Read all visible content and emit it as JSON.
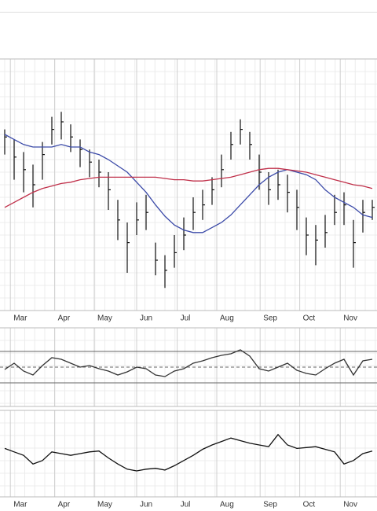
{
  "chart_data": [
    {
      "type": "ohlc",
      "x": [
        0.5,
        1.5,
        2.5,
        3.5,
        4.5,
        5.5,
        6.5,
        7.5,
        8.5,
        9.5,
        10.5,
        11.5,
        12.5,
        13.5,
        14.5,
        15.5,
        16.5,
        17.5,
        18.5,
        19.5,
        20.5,
        21.5,
        22.5,
        23.5,
        24.5,
        25.5,
        26.5,
        27.5,
        28.5,
        29.5,
        30.5,
        31.5,
        32.5,
        33.5,
        34.5,
        35.5,
        36.5,
        37.5,
        38.5,
        39.5
      ],
      "high": [
        72,
        68,
        63,
        58,
        67,
        77,
        79,
        74,
        68,
        64,
        60,
        55,
        44,
        35,
        43,
        46,
        27,
        22,
        30,
        37,
        45,
        48,
        53,
        62,
        71,
        76,
        71,
        62,
        55,
        56,
        54,
        48,
        37,
        34,
        38,
        46,
        47,
        36,
        44,
        44
      ],
      "low": [
        62,
        52,
        47,
        41,
        52,
        66,
        68,
        63,
        57,
        53,
        49,
        40,
        28,
        15,
        30,
        32,
        14,
        9,
        17,
        24,
        32,
        36,
        42,
        49,
        60,
        66,
        60,
        48,
        42,
        44,
        39,
        32,
        22,
        18,
        25,
        34,
        34,
        17,
        31,
        36
      ],
      "close": [
        69,
        61,
        56,
        50,
        62,
        72,
        75,
        69,
        64,
        59,
        55,
        48,
        36,
        27,
        36,
        39,
        20,
        16,
        23,
        30,
        39,
        42,
        48,
        56,
        66,
        72,
        66,
        55,
        48,
        50,
        47,
        41,
        30,
        28,
        31,
        39,
        42,
        27,
        39,
        41
      ],
      "bar_color": "#111111",
      "series": [
        {
          "color": "#3b4aa8",
          "values": [
            70,
            68,
            66,
            65,
            65,
            65,
            66,
            65,
            65,
            63,
            62,
            60,
            57.5,
            55,
            51,
            47,
            42,
            37.5,
            34,
            32,
            31,
            31,
            33,
            35,
            38,
            42,
            46,
            50,
            53,
            55,
            56,
            55,
            54,
            52,
            48,
            45,
            43,
            41,
            38,
            37
          ]
        },
        {
          "color": "#c0304a",
          "values": [
            41,
            43,
            45,
            47,
            48.5,
            49.5,
            50.5,
            51,
            52,
            52.5,
            53,
            53,
            53,
            53,
            53,
            53,
            53,
            52.5,
            52,
            52,
            51.5,
            51.5,
            52,
            52.5,
            53,
            54,
            55,
            56,
            56.5,
            56.5,
            56,
            55.5,
            55,
            54,
            53,
            52,
            51,
            50,
            49.5,
            48.5
          ]
        }
      ],
      "xlim": [
        0,
        40
      ],
      "ylim": [
        0,
        100
      ],
      "xticks": [
        {
          "value": 1.1,
          "label": "Mar"
        },
        {
          "value": 5.8,
          "label": "Apr"
        },
        {
          "value": 10,
          "label": "May"
        },
        {
          "value": 14.5,
          "label": "Jun"
        },
        {
          "value": 18.8,
          "label": "Jul"
        },
        {
          "value": 23,
          "label": "Aug"
        },
        {
          "value": 27.6,
          "label": "Sep"
        },
        {
          "value": 31.8,
          "label": "Oct"
        },
        {
          "value": 36.1,
          "label": "Nov"
        }
      ],
      "grid": true
    },
    {
      "type": "line",
      "x": [
        0.5,
        1.5,
        2.5,
        3.5,
        4.5,
        5.5,
        6.5,
        7.5,
        8.5,
        9.5,
        10.5,
        11.5,
        12.5,
        13.5,
        14.5,
        15.5,
        16.5,
        17.5,
        18.5,
        19.5,
        20.5,
        21.5,
        22.5,
        23.5,
        24.5,
        25.5,
        26.5,
        27.5,
        28.5,
        29.5,
        30.5,
        31.5,
        32.5,
        33.5,
        34.5,
        35.5,
        36.5,
        37.5,
        38.5,
        39.5
      ],
      "series": [
        {
          "color": "#333333",
          "values": [
            47,
            55,
            45,
            40,
            52,
            62,
            60,
            55,
            50,
            52,
            48,
            45,
            40,
            44,
            50,
            48,
            40,
            38,
            45,
            48,
            55,
            58,
            62,
            65,
            67,
            72,
            64,
            48,
            45,
            50,
            55,
            46,
            42,
            40,
            48,
            55,
            60,
            40,
            58,
            60
          ]
        }
      ],
      "xlim": [
        0,
        40
      ],
      "ylim": [
        0,
        100
      ],
      "hlines": [
        30,
        50,
        70
      ]
    },
    {
      "type": "line",
      "x": [
        0.5,
        1.5,
        2.5,
        3.5,
        4.5,
        5.5,
        6.5,
        7.5,
        8.5,
        9.5,
        10.5,
        11.5,
        12.5,
        13.5,
        14.5,
        15.5,
        16.5,
        17.5,
        18.5,
        19.5,
        20.5,
        21.5,
        22.5,
        23.5,
        24.5,
        25.5,
        26.5,
        27.5,
        28.5,
        29.5,
        30.5,
        31.5,
        32.5,
        33.5,
        34.5,
        35.5,
        36.5,
        37.5,
        38.5,
        39.5
      ],
      "series": [
        {
          "color": "#111111",
          "values": [
            56,
            52,
            48,
            38,
            42,
            52,
            50,
            48,
            50,
            52,
            53,
            45,
            38,
            32,
            30,
            32,
            33,
            31,
            36,
            42,
            48,
            55,
            60,
            64,
            68,
            65,
            62,
            60,
            58,
            72,
            60,
            56,
            57,
            58,
            55,
            52,
            38,
            42,
            50,
            53
          ]
        }
      ],
      "xlim": [
        0,
        40
      ],
      "ylim": [
        0,
        100
      ]
    }
  ]
}
